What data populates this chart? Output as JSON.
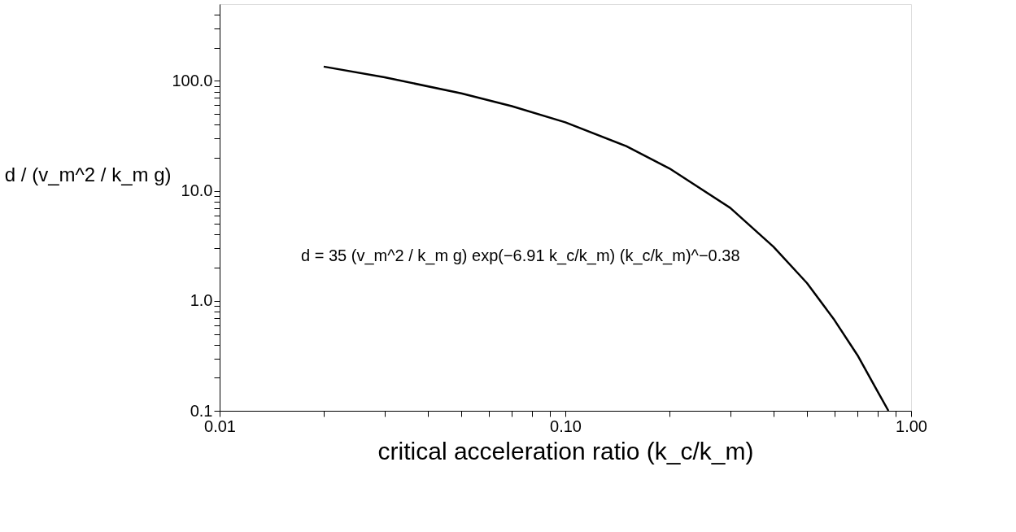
{
  "chart_data": {
    "type": "line",
    "xlabel": "critical acceleration ratio (k_c/k_m)",
    "ylabel": "d / (v_m^2 / k_m g)",
    "annotations": [
      "d = 35 (v_m^2 / k_m g) exp(−6.91 k_c/k_m) (k_c/k_m)^−0.38"
    ],
    "series": [
      {
        "color": "#000000",
        "x": [
          0.02,
          0.03,
          0.05,
          0.07,
          0.1,
          0.15,
          0.2,
          0.3,
          0.4,
          0.5,
          0.6,
          0.7,
          0.8,
          0.86
        ],
        "values": [
          135,
          108,
          77,
          59,
          42,
          25.5,
          16,
          7.0,
          3.1,
          1.45,
          0.67,
          0.32,
          0.15,
          0.1
        ]
      }
    ],
    "log": "xy",
    "grid": false,
    "marker": "none",
    "line_style": "solid",
    "xlim": [
      0.01,
      1.0
    ],
    "ylim": [
      0.1,
      500
    ],
    "xticks": [
      {
        "value": 0.01,
        "label": "0.01"
      },
      {
        "value": 0.02,
        "label": null
      },
      {
        "value": 0.03,
        "label": null
      },
      {
        "value": 0.04,
        "label": null
      },
      {
        "value": 0.05,
        "label": null
      },
      {
        "value": 0.06,
        "label": null
      },
      {
        "value": 0.07,
        "label": null
      },
      {
        "value": 0.08,
        "label": null
      },
      {
        "value": 0.09,
        "label": null
      },
      {
        "value": 0.1,
        "label": "0.10"
      },
      {
        "value": 0.2,
        "label": null
      },
      {
        "value": 0.3,
        "label": null
      },
      {
        "value": 0.4,
        "label": null
      },
      {
        "value": 0.5,
        "label": null
      },
      {
        "value": 0.6,
        "label": null
      },
      {
        "value": 0.7,
        "label": null
      },
      {
        "value": 0.8,
        "label": null
      },
      {
        "value": 0.9,
        "label": null
      },
      {
        "value": 1.0,
        "label": "1.00"
      }
    ],
    "yticks": [
      {
        "value": 0.1,
        "label": "0.1"
      },
      {
        "value": 0.2,
        "label": null
      },
      {
        "value": 0.3,
        "label": null
      },
      {
        "value": 0.4,
        "label": null
      },
      {
        "value": 0.5,
        "label": null
      },
      {
        "value": 0.6,
        "label": null
      },
      {
        "value": 0.7,
        "label": null
      },
      {
        "value": 0.8,
        "label": null
      },
      {
        "value": 0.9,
        "label": null
      },
      {
        "value": 1,
        "label": "1.0"
      },
      {
        "value": 2,
        "label": null
      },
      {
        "value": 3,
        "label": null
      },
      {
        "value": 4,
        "label": null
      },
      {
        "value": 5,
        "label": null
      },
      {
        "value": 6,
        "label": null
      },
      {
        "value": 7,
        "label": null
      },
      {
        "value": 8,
        "label": null
      },
      {
        "value": 9,
        "label": null
      },
      {
        "value": 10,
        "label": "10.0"
      },
      {
        "value": 20,
        "label": null
      },
      {
        "value": 30,
        "label": null
      },
      {
        "value": 40,
        "label": null
      },
      {
        "value": 50,
        "label": null
      },
      {
        "value": 60,
        "label": null
      },
      {
        "value": 70,
        "label": null
      },
      {
        "value": 80,
        "label": null
      },
      {
        "value": 90,
        "label": null
      },
      {
        "value": 100,
        "label": "100.0"
      },
      {
        "value": 200,
        "label": null
      },
      {
        "value": 300,
        "label": null
      },
      {
        "value": 400,
        "label": null
      }
    ]
  }
}
